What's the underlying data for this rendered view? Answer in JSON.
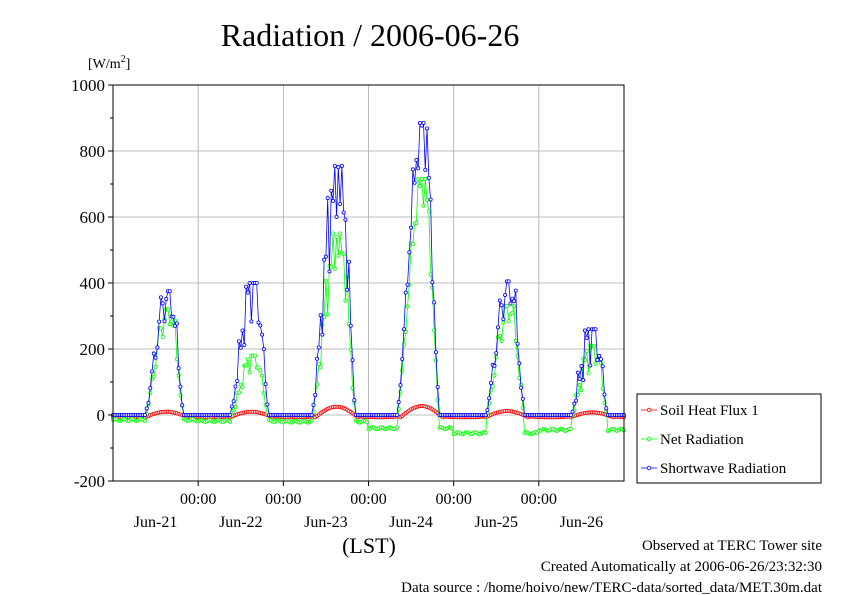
{
  "chart_data": {
    "type": "line",
    "title": "Radiation / 2006-06-26",
    "ylabel": "[W/m",
    "ylabel_sup": "2",
    "ylabel_close": "]",
    "xlabel": "(LST)",
    "ylim": [
      -200,
      1000
    ],
    "yticks": [
      "1000",
      "800",
      "600",
      "400",
      "200",
      "0",
      "-200"
    ],
    "ytick_values": [
      1000,
      800,
      600,
      400,
      200,
      0,
      -200
    ],
    "xlim_hours": [
      0,
      144
    ],
    "x_midnight_labels": [
      "00:00",
      "00:00",
      "00:00",
      "00:00",
      "00:00"
    ],
    "x_midnight_hours": [
      24,
      48,
      72,
      96,
      120
    ],
    "x_day_labels": [
      "Jun-21",
      "Jun-22",
      "Jun-23",
      "Jun-24",
      "Jun-25",
      "Jun-26"
    ],
    "x_day_center_hours": [
      12,
      36,
      60,
      84,
      108,
      132
    ],
    "grid": true,
    "legend_position": "right-bottom, outside plot",
    "series": [
      {
        "name": "Soil Heat Flux 1",
        "color": "#ff0000",
        "day_peaks": [
          10,
          10,
          25,
          27,
          12,
          8
        ],
        "night_min": -7
      },
      {
        "name": "Net Radiation",
        "color": "#00ff00",
        "day_peaks": [
          330,
          190,
          560,
          725,
          340,
          220
        ],
        "night_mins": [
          -15,
          -18,
          -20,
          -40,
          -55,
          -45
        ]
      },
      {
        "name": "Shortwave Radiation",
        "color": "#0000ff",
        "day_peaks": [
          375,
          400,
          755,
          885,
          405,
          260
        ]
      }
    ]
  },
  "footer": {
    "observed": "Observed at TERC Tower site",
    "created": "Created Automatically at 2006-06-26/23:32:30",
    "source": "Data source : /home/hoivo/new/TERC-data/sorted_data/MET.30m.dat"
  }
}
